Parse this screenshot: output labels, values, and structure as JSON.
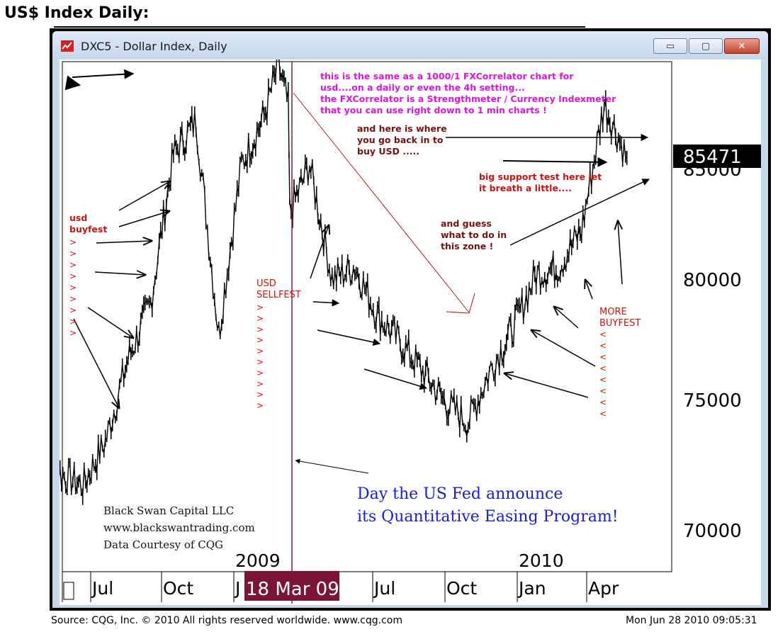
{
  "page_heading": "US$ Index Daily:",
  "window": {
    "title": "DXC5 - Dollar Index, Daily",
    "minimize_label": "▭",
    "maximize_label": "▢",
    "close_label": "✕"
  },
  "footer": {
    "source": "Source: CQG, Inc. © 2010 All rights reserved worldwide. www.cqg.com",
    "timestamp": "Mon Jun 28 2010 09:05:31"
  },
  "colors": {
    "price": "#000000",
    "magenta_note": "#e014e0",
    "dark_red_note": "#7a0f0f",
    "red_note": "#d11010",
    "blue_note": "#1a1ae0",
    "cursor_line": "#8b1a3b",
    "date_badge_bg": "#7c1437",
    "trendline": "#b01818"
  },
  "chart_data": {
    "type": "line",
    "title": "DXC5 - Dollar Index, Daily",
    "last_price": "85471",
    "y_ticks": [
      "70000",
      "75000",
      "80000",
      "85000"
    ],
    "ylim": [
      68300,
      90800
    ],
    "x_ticks": [
      "Jul",
      "Oct",
      "J",
      "Jul",
      "Oct",
      "Jan",
      "Apr"
    ],
    "year_labels": [
      "2009",
      "2010"
    ],
    "cursor_date": "18 Mar 09",
    "grid": false,
    "series": [
      {
        "x": [
          "2008-04",
          "2008-05",
          "2008-06",
          "2008-07",
          "2008-08",
          "2008-09",
          "2008-10",
          "2008-11",
          "2008-12",
          "2009-01",
          "2009-02",
          "2009-03-04",
          "2009-03-17",
          "2009-03-19",
          "2009-04",
          "2009-05",
          "2009-06",
          "2009-07",
          "2009-08",
          "2009-09",
          "2009-10",
          "2009-11",
          "2009-12",
          "2010-01",
          "2010-02",
          "2010-03",
          "2010-04",
          "2010-05",
          "2010-06"
        ],
        "values": [
          72900,
          72500,
          72000,
          73800,
          77200,
          79500,
          85600,
          87000,
          78200,
          85200,
          87200,
          89300,
          87600,
          83200,
          85200,
          80500,
          81000,
          79000,
          77900,
          76700,
          75400,
          74600,
          76800,
          78500,
          80700,
          81000,
          82500,
          87700,
          85471
        ]
      }
    ],
    "annotations": {
      "magenta_note": [
        "this is the same as a 1000/1 FXCorrelator chart for",
        "usd....on a daily or even the 4h setting...",
        "the FXCorrelator is a Strengthmeter / Currency Indexmeter",
        "that you can use right down to 1 min charts !"
      ],
      "back_in_note": [
        "and here is where",
        "you go back in to",
        "buy USD ....."
      ],
      "support_note": [
        "big support test here let",
        "it breath a little...."
      ],
      "guess_note": [
        "and guess",
        "what to do in",
        "this zone !"
      ],
      "usd_buyfest": [
        "usd",
        "buyfest"
      ],
      "usd_sellfest": [
        "USD",
        "SELLFEST"
      ],
      "more_buyfest": [
        "MORE",
        "BUYFEST"
      ],
      "fed_note": [
        "Day the US Fed announce",
        "its Quantitative Easing Program!"
      ],
      "credit": [
        "Black Swan Capital LLC",
        "www.blackswantrading.com",
        "Data Courtesy of CQG"
      ],
      "gt_marker": ">",
      "lt_marker": "<"
    }
  }
}
